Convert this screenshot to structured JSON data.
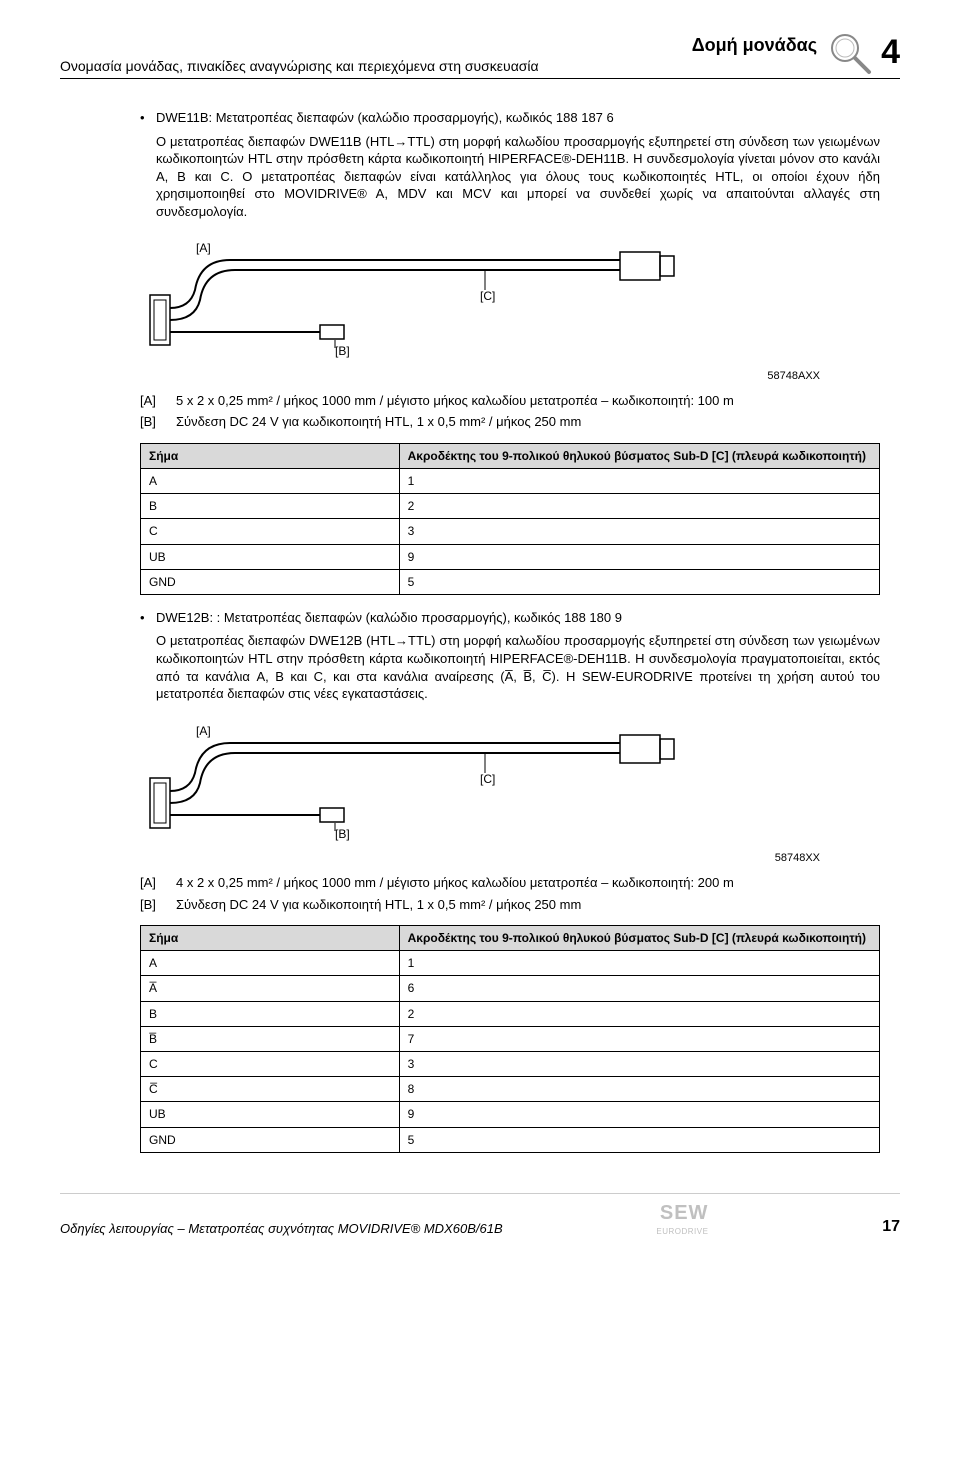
{
  "header": {
    "title": "Δομή μονάδας",
    "subtitle": "Ονομασία μονάδας, πινακίδες αναγνώρισης και περιεχόμενα στη συσκευασία",
    "chapter": "4"
  },
  "section1": {
    "bullet": "DWE11B: Μετατροπέας διεπαφών (καλώδιο προσαρμογής), κωδικός 188 187 6",
    "para": "Ο μετατροπέας διεπαφών DWE11B (HTL→TTL) στη μορφή καλωδίου προσαρμογής εξυπηρετεί στη σύνδεση των γειωμένων κωδικοποιητών HTL στην πρόσθετη κάρτα κωδικοποιητή HIPERFACE®-DEH11B. Η συνδεσμολογία γίνεται μόνον στο κανάλι A, B και C. Ο μετατροπέας διεπαφών είναι κατάλληλος για όλους τους κωδικοποιητές HTL, οι οποίοι έχουν ήδη χρησιμοποιηθεί στο MOVIDRIVE® A, MDV και MCV και μπορεί να συνδεθεί χωρίς να απαιτούνται αλλαγές στη συνδεσμολογία.",
    "ref": "58748AXX",
    "defA": "5 x 2 x 0,25 mm² / μήκος 1000 mm / μέγιστο μήκος καλωδίου μετατροπέα – κωδικοποιητή: 100 m",
    "defB": "Σύνδεση DC 24 V για κωδικοποιητή HTL, 1 x 0,5 mm² / μήκος 250 mm",
    "table": {
      "th1": "Σήμα",
      "th2": "Ακροδέκτης του 9-πολικού θηλυκού βύσματος Sub-D [C] (πλευρά κωδικοποιητή)",
      "rows": [
        [
          "A",
          "1"
        ],
        [
          "B",
          "2"
        ],
        [
          "C",
          "3"
        ],
        [
          "UB",
          "9"
        ],
        [
          "GND",
          "5"
        ]
      ]
    }
  },
  "section2": {
    "bullet": "DWE12B: : Μετατροπέας διεπαφών (καλώδιο προσαρμογής), κωδικός 188 180 9",
    "para": "Ο μετατροπέας διεπαφών DWE12B (HTL→TTL) στη μορφή καλωδίου προσαρμογής εξυπηρετεί στη σύνδεση των γειωμένων κωδικοποιητών HTL στην πρόσθετη κάρτα κωδικοποιητή HIPERFACE®-DEH11B. Η συνδεσμολογία πραγματοποιείται, εκτός από τα κανάλια A, B και C, και στα κανάλια αναίρεσης (A̅, B̅, C̅). Η SEW-EURODRIVE προτείνει τη χρήση αυτού του μετατροπέα διεπαφών στις νέες εγκαταστάσεις.",
    "ref": "58748XX",
    "defA": "4 x 2 x 0,25 mm² / μήκος 1000 mm / μέγιστο μήκος καλωδίου μετατροπέα – κωδικοποιητή: 200 m",
    "defB": "Σύνδεση DC 24 V για κωδικοποιητή HTL, 1 x 0,5 mm² / μήκος 250 mm",
    "table": {
      "th1": "Σήμα",
      "th2": "Ακροδέκτης του 9-πολικού θηλυκού βύσματος Sub-D [C] (πλευρά κωδικοποιητή)",
      "rows": [
        [
          "A",
          "1"
        ],
        [
          "A̅",
          "6"
        ],
        [
          "B",
          "2"
        ],
        [
          "B̅",
          "7"
        ],
        [
          "C",
          "3"
        ],
        [
          "C̅",
          "8"
        ],
        [
          "UB",
          "9"
        ],
        [
          "GND",
          "5"
        ]
      ]
    }
  },
  "labels": {
    "A": "[A]",
    "B": "[B]",
    "C": "[C]"
  },
  "footer": {
    "text": "Οδηγίες λειτουργίας – Μετατροπέας συχνότητας MOVIDRIVE® MDX60B/61B",
    "page": "17",
    "brand": "SEW",
    "brand_sub": "EURODRIVE"
  }
}
